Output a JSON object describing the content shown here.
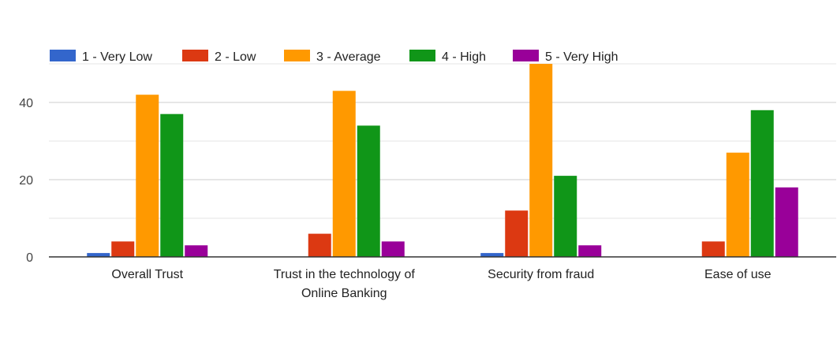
{
  "chart_data": {
    "type": "bar",
    "title": "",
    "xlabel": "",
    "ylabel": "",
    "ylim": [
      0,
      50
    ],
    "yticks": [
      0,
      20,
      40
    ],
    "grid": true,
    "legend_position": "top-left",
    "categories": [
      [
        "Overall Trust"
      ],
      [
        "Trust in the technology of",
        "Online Banking"
      ],
      [
        "Security from fraud"
      ],
      [
        "Ease of use"
      ]
    ],
    "series": [
      {
        "name": "1 - Very Low",
        "color": "#3366cc",
        "values": [
          1,
          0,
          1,
          0
        ]
      },
      {
        "name": "2 - Low",
        "color": "#dc3912",
        "values": [
          4,
          6,
          12,
          4
        ]
      },
      {
        "name": "3 - Average",
        "color": "#ff9900",
        "values": [
          42,
          43,
          50,
          27
        ]
      },
      {
        "name": "4 - High",
        "color": "#109618",
        "values": [
          37,
          34,
          21,
          38
        ]
      },
      {
        "name": "5 - Very High",
        "color": "#990099",
        "values": [
          3,
          4,
          3,
          18
        ]
      }
    ]
  }
}
